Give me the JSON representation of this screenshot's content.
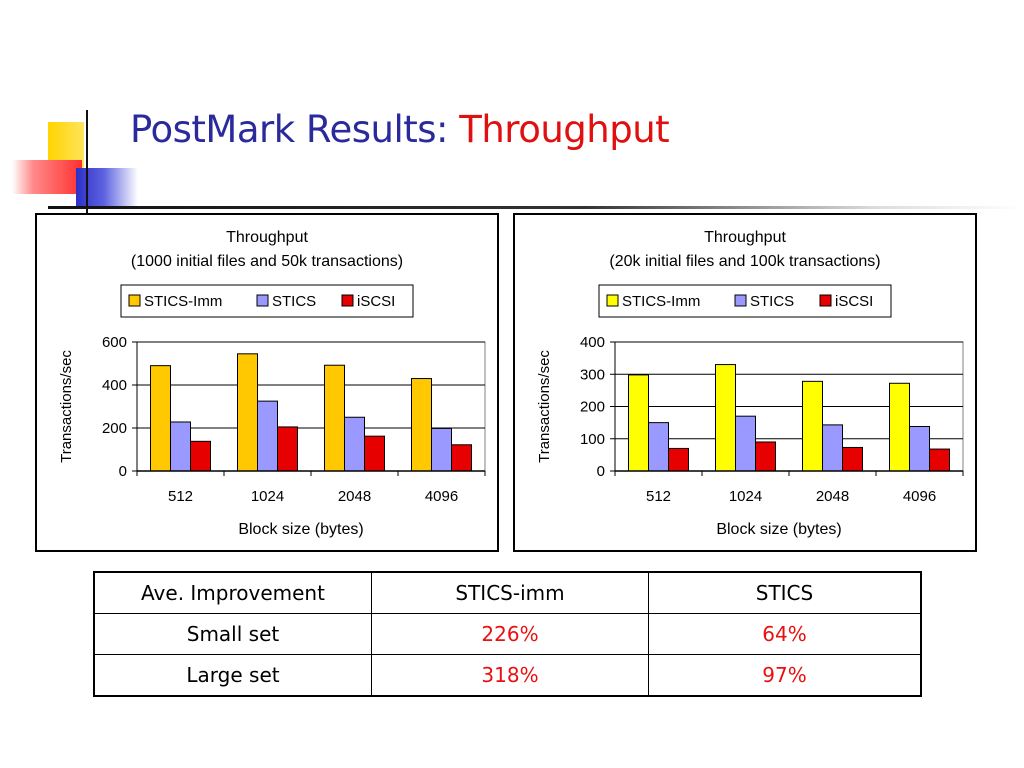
{
  "slide": {
    "title_main": "PostMark Results:",
    "title_accent": "Throughput",
    "colors": {
      "title": "#2a2a9c",
      "accent": "#e01010",
      "positive": "#e81010"
    }
  },
  "chart_data": [
    {
      "type": "bar",
      "title": "Throughput",
      "subtitle": "(1000 initial files and 50k transactions)",
      "xlabel": "Block size (bytes)",
      "ylabel": "Transactions/sec",
      "categories": [
        "512",
        "1024",
        "2048",
        "4096"
      ],
      "series": [
        {
          "name": "STICS-Imm",
          "color": "#ffc800",
          "values": [
            490,
            545,
            492,
            430
          ]
        },
        {
          "name": "STICS",
          "color": "#9999ff",
          "values": [
            228,
            325,
            250,
            198
          ]
        },
        {
          "name": "iSCSI",
          "color": "#e60000",
          "values": [
            138,
            205,
            162,
            122
          ]
        }
      ],
      "ylim": [
        0,
        600
      ],
      "yticks": [
        "0",
        "200",
        "400",
        "600"
      ],
      "grid": true,
      "legend": "top"
    },
    {
      "type": "bar",
      "title": "Throughput",
      "subtitle": "(20k initial files and 100k transactions)",
      "xlabel": "Block size (bytes)",
      "ylabel": "Transactions/sec",
      "categories": [
        "512",
        "1024",
        "2048",
        "4096"
      ],
      "series": [
        {
          "name": "STICS-Imm",
          "color": "#ffff00",
          "values": [
            298,
            330,
            278,
            272
          ]
        },
        {
          "name": "STICS",
          "color": "#9999ff",
          "values": [
            150,
            170,
            143,
            138
          ]
        },
        {
          "name": "iSCSI",
          "color": "#e60000",
          "values": [
            70,
            90,
            73,
            68
          ]
        }
      ],
      "ylim": [
        0,
        400
      ],
      "yticks": [
        "0",
        "100",
        "200",
        "300",
        "400"
      ],
      "grid": true,
      "legend": "top"
    }
  ],
  "table": {
    "header": [
      "Ave. Improvement",
      "STICS-imm",
      "STICS"
    ],
    "rows": [
      [
        "Small set",
        "226%",
        "64%"
      ],
      [
        "Large set",
        "318%",
        "97%"
      ]
    ]
  }
}
